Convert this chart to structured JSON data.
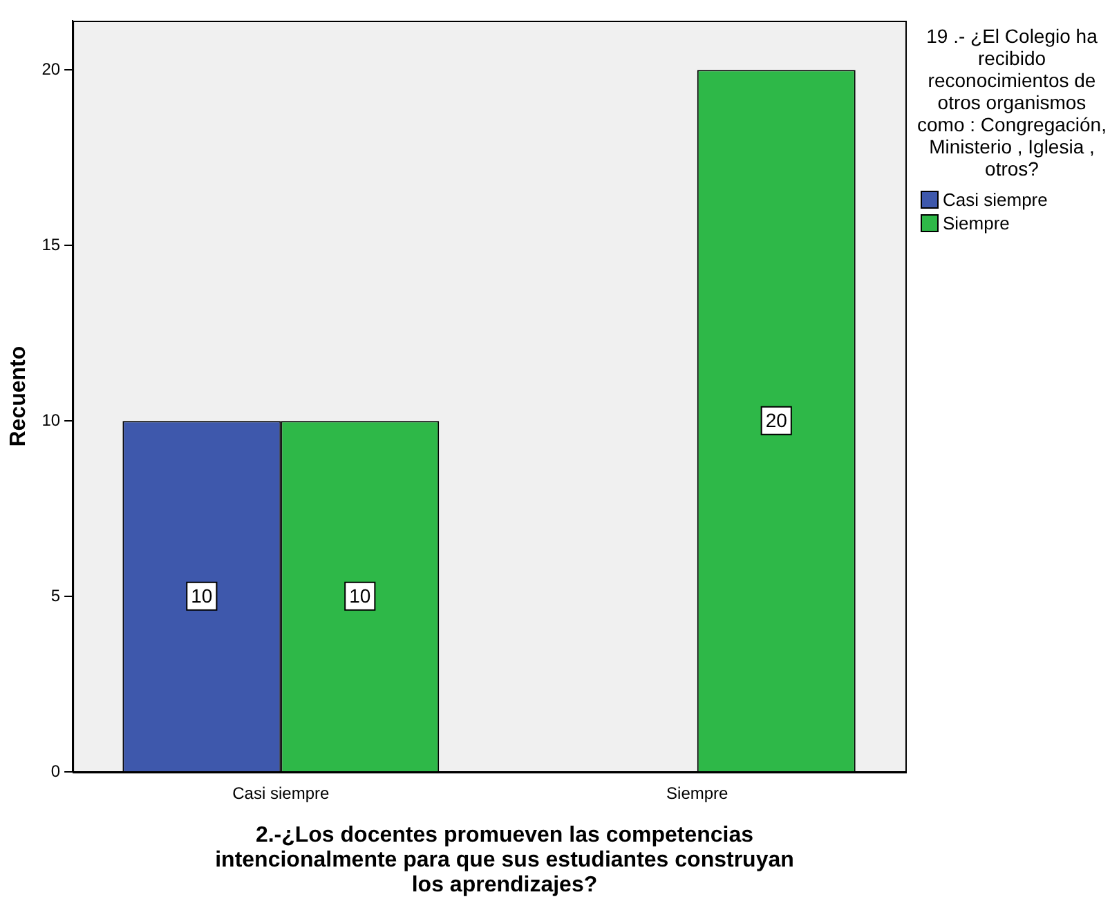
{
  "chart_data": {
    "type": "bar",
    "xlabel": "2.-¿Los  docentes  promueven las competencias intencionalmente  para  que sus  estudiantes construyan los  aprendizajes?",
    "ylabel": "Recuento",
    "legend_title": "19 .- ¿El Colegio  ha recibido reconocimientos de  otros organismos como : Congregación, Ministerio , Iglesia , otros?",
    "categories": [
      "Casi siempre",
      "Siempre"
    ],
    "series": [
      {
        "name": "Casi siempre",
        "color": "#3e58ac",
        "values": [
          10,
          null
        ]
      },
      {
        "name": "Siempre",
        "color": "#2eb848",
        "values": [
          10,
          20
        ]
      }
    ],
    "ylim": [
      0,
      21.4
    ],
    "yticks": [
      0,
      5,
      10,
      15,
      20
    ],
    "grid": false,
    "legend": "right",
    "data_labels": true
  }
}
